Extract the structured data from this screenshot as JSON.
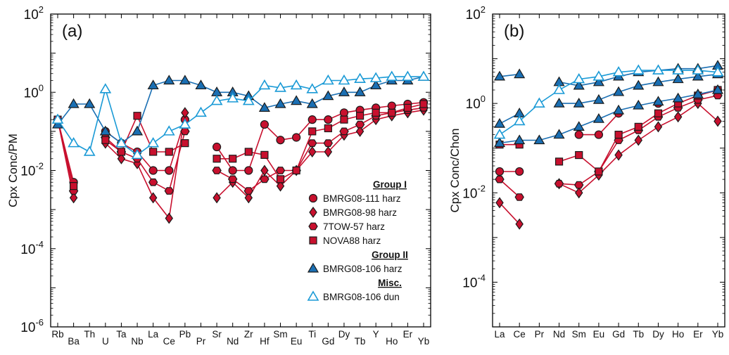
{
  "chart_data": [
    {
      "type": "line",
      "panel": "(a)",
      "ylabel": "Cpx Conc/PM",
      "yscale": "log",
      "ylim": [
        1e-06,
        100
      ],
      "yticks": [
        {
          "value": 1e-06,
          "base": "10",
          "exp": "-6"
        },
        {
          "value": 0.0001,
          "base": "10",
          "exp": "-4"
        },
        {
          "value": 0.01,
          "base": "10",
          "exp": "-2"
        },
        {
          "value": 1,
          "base": "10",
          "exp": "0"
        },
        {
          "value": 100,
          "base": "10",
          "exp": "2"
        }
      ],
      "ytick_labels": [
        "10^-6",
        "10^-4",
        "10^-2",
        "10^0",
        "10^2"
      ],
      "categories": [
        "Rb",
        "Ba",
        "Th",
        "U",
        "Ta",
        "Nb",
        "La",
        "Ce",
        "Pb",
        "Pr",
        "Sr",
        "Nd",
        "Zr",
        "Hf",
        "Sm",
        "Eu",
        "Ti",
        "Gd",
        "Dy",
        "Tb",
        "Y",
        "Ho",
        "Er",
        "Yb"
      ],
      "series": [
        {
          "name": "BMRG08-111 harz",
          "group": "Group I",
          "marker": "circle",
          "color": "#c8102e",
          "values": [
            0.2,
            0.005,
            null,
            0.1,
            0.05,
            0.03,
            0.01,
            0.01,
            0.2,
            null,
            0.04,
            0.01,
            0.01,
            0.15,
            0.06,
            0.07,
            0.2,
            0.2,
            0.3,
            0.35,
            0.4,
            0.45,
            0.5,
            0.55
          ]
        },
        {
          "name": "BMRG08-98 harz",
          "group": "Group I",
          "marker": "diamond",
          "color": "#c8102e",
          "values": [
            0.2,
            0.002,
            null,
            0.05,
            0.02,
            0.015,
            0.002,
            0.0006,
            0.3,
            null,
            0.002,
            0.005,
            0.002,
            0.01,
            0.004,
            0.01,
            0.03,
            0.03,
            0.08,
            0.1,
            0.2,
            0.25,
            0.3,
            0.35
          ]
        },
        {
          "name": "7TOW-57 harz",
          "group": "Group I",
          "marker": "hexagon",
          "color": "#c8102e",
          "values": [
            0.2,
            0.003,
            null,
            0.07,
            0.03,
            0.02,
            0.005,
            0.003,
            0.1,
            null,
            0.01,
            0.006,
            0.003,
            0.006,
            0.01,
            0.01,
            0.05,
            0.05,
            0.1,
            0.15,
            0.25,
            0.3,
            0.35,
            0.4
          ]
        },
        {
          "name": "NOVA88 harz",
          "group": "Group I",
          "marker": "square",
          "color": "#c8102e",
          "values": [
            0.2,
            0.004,
            null,
            0.06,
            0.03,
            0.25,
            0.03,
            0.03,
            0.05,
            null,
            0.02,
            0.02,
            0.03,
            0.025,
            0.006,
            0.01,
            0.1,
            0.12,
            0.2,
            0.25,
            0.3,
            0.3,
            0.4,
            0.5
          ]
        },
        {
          "name": "BMRG08-106 harz",
          "group": "Group II",
          "marker": "triangle",
          "color": "#1a6fb3",
          "values": [
            0.15,
            0.5,
            0.5,
            0.1,
            0.05,
            0.1,
            1.5,
            2.0,
            2.0,
            1.5,
            1.0,
            1.0,
            0.8,
            0.4,
            0.5,
            0.6,
            0.5,
            0.8,
            1.0,
            1.0,
            1.5,
            2.0,
            2.0,
            2.5
          ]
        },
        {
          "name": "BMRG08-106 dun",
          "group": "Misc.",
          "marker": "triangle-open",
          "color": "#1a9ad6",
          "values": [
            0.2,
            0.05,
            0.03,
            1.2,
            0.05,
            0.025,
            0.05,
            0.1,
            0.15,
            0.3,
            0.6,
            0.7,
            0.6,
            1.5,
            1.3,
            1.5,
            1.2,
            2.0,
            2.0,
            2.2,
            2.3,
            2.5,
            2.5,
            2.5
          ]
        }
      ],
      "legend": {
        "position": "bottom-right",
        "groups": [
          {
            "title": "Group I",
            "items": [
              "BMRG08-111 harz",
              "BMRG08-98 harz",
              "7TOW-57 harz",
              "NOVA88 harz"
            ]
          },
          {
            "title": "Group II",
            "items": [
              "BMRG08-106 harz"
            ]
          },
          {
            "title": "Misc.",
            "items": [
              "BMRG08-106 dun"
            ]
          }
        ]
      },
      "grid": false
    },
    {
      "type": "line",
      "panel": "(b)",
      "ylabel": "Cpx Conc/Chon",
      "yscale": "log",
      "ylim": [
        1e-05,
        100
      ],
      "yticks": [
        {
          "value": 0.0001,
          "base": "10",
          "exp": "-4"
        },
        {
          "value": 0.01,
          "base": "10",
          "exp": "-2"
        },
        {
          "value": 1,
          "base": "10",
          "exp": "0"
        },
        {
          "value": 100,
          "base": "10",
          "exp": "2"
        }
      ],
      "ytick_labels": [
        "10^-4",
        "10^-2",
        "10^0",
        "10^2"
      ],
      "categories": [
        "La",
        "Ce",
        "Pr",
        "Nd",
        "Sm",
        "Eu",
        "Gd",
        "Tb",
        "Dy",
        "Ho",
        "Er",
        "Yb"
      ],
      "series": [
        {
          "name": "BMRG08-111 harz",
          "marker": "circle",
          "color": "#c8102e",
          "values": [
            0.03,
            0.03,
            null,
            null,
            0.2,
            0.2,
            0.6,
            null,
            1.0,
            null,
            1.5,
            2.0
          ]
        },
        {
          "name": "BMRG08-98 harz",
          "marker": "diamond",
          "color": "#c8102e",
          "values": [
            0.006,
            0.002,
            null,
            0.016,
            0.01,
            0.025,
            0.07,
            0.15,
            0.3,
            0.5,
            1.0,
            0.4
          ]
        },
        {
          "name": "7TOW-57 harz",
          "marker": "hexagon",
          "color": "#c8102e",
          "values": [
            0.02,
            0.008,
            null,
            0.016,
            0.015,
            0.03,
            0.15,
            0.25,
            0.5,
            0.8,
            1.2,
            1.5
          ]
        },
        {
          "name": "NOVA88 harz",
          "marker": "square",
          "color": "#c8102e",
          "values": [
            0.12,
            0.12,
            null,
            0.05,
            0.07,
            0.03,
            0.2,
            0.3,
            0.6,
            1.0,
            1.5,
            2.0
          ]
        },
        {
          "name": "BMRG08-106 harz (1)",
          "marker": "triangle",
          "color": "#1a6fb3",
          "values": [
            4.0,
            4.5,
            null,
            3.0,
            2.5,
            3.0,
            4.0,
            5.0,
            5.5,
            6.0,
            6.0,
            7.0
          ]
        },
        {
          "name": "BMRG08-106 harz (2)",
          "marker": "triangle",
          "color": "#1a6fb3",
          "values": [
            0.35,
            0.6,
            null,
            1.0,
            1.0,
            1.2,
            1.8,
            2.5,
            3.0,
            3.5,
            4.0,
            4.5
          ]
        },
        {
          "name": "BMRG08-106 harz (3)",
          "marker": "triangle",
          "color": "#1a6fb3",
          "values": [
            0.13,
            0.15,
            0.15,
            0.2,
            0.3,
            0.45,
            0.7,
            0.9,
            1.1,
            1.3,
            1.6,
            2.0
          ]
        },
        {
          "name": "BMRG08-106 dun",
          "marker": "triangle-open",
          "color": "#1a9ad6",
          "values": [
            0.2,
            0.4,
            1.0,
            2.0,
            3.5,
            4.0,
            5.0,
            5.5,
            5.5,
            5.5,
            5.5,
            5.0
          ]
        }
      ],
      "grid": false
    }
  ]
}
